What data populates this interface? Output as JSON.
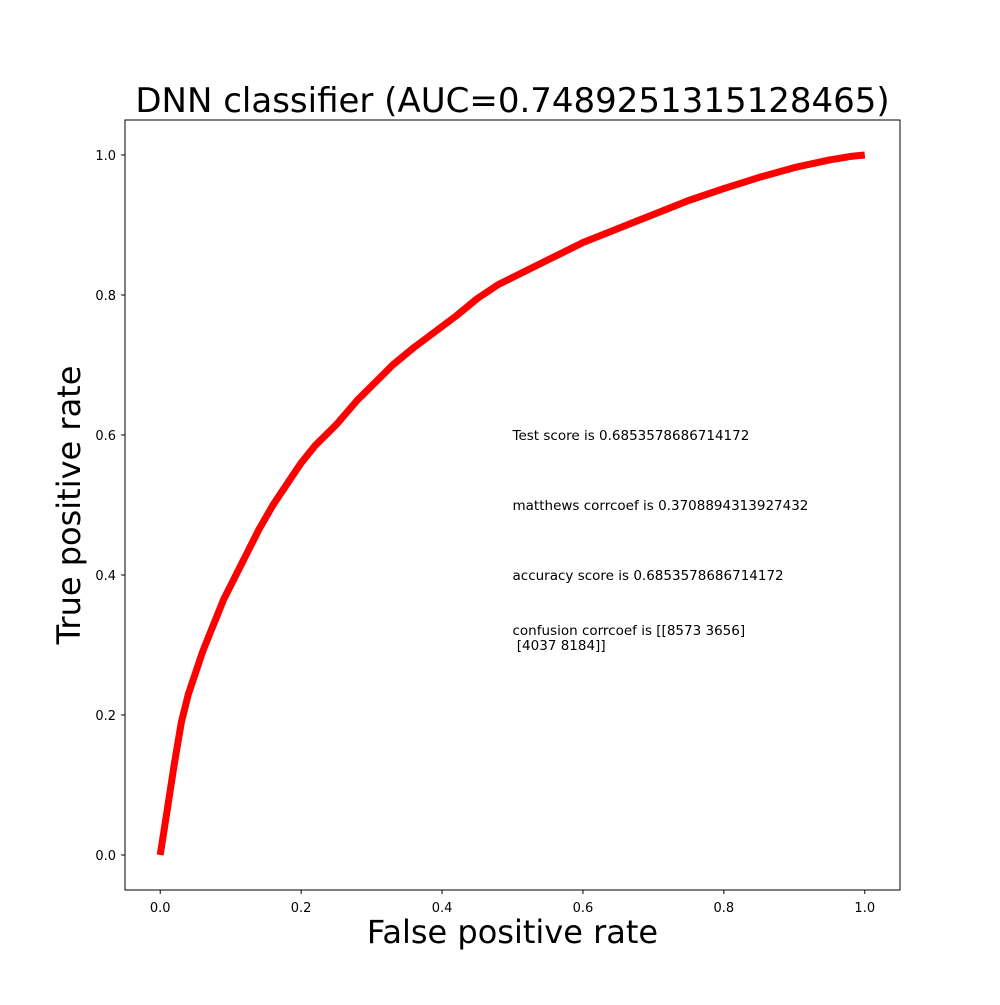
{
  "chart_data": {
    "type": "line",
    "title": "DNN classifier (AUC=0.7489251315128465)",
    "xlabel": "False positive rate",
    "ylabel": "True positive rate",
    "xlim": [
      -0.05,
      1.05
    ],
    "ylim": [
      -0.05,
      1.05
    ],
    "xticks": [
      "0.0",
      "0.2",
      "0.4",
      "0.6",
      "0.8",
      "1.0"
    ],
    "yticks": [
      "0.0",
      "0.2",
      "0.4",
      "0.6",
      "0.8",
      "1.0"
    ],
    "grid": false,
    "series": [
      {
        "color": "#ff0000",
        "x": [
          0.0,
          0.01,
          0.02,
          0.03,
          0.04,
          0.05,
          0.06,
          0.07,
          0.08,
          0.09,
          0.1,
          0.12,
          0.14,
          0.16,
          0.18,
          0.2,
          0.22,
          0.25,
          0.28,
          0.3,
          0.33,
          0.36,
          0.38,
          0.4,
          0.42,
          0.45,
          0.48,
          0.5,
          0.55,
          0.6,
          0.65,
          0.7,
          0.75,
          0.8,
          0.85,
          0.9,
          0.95,
          0.98,
          1.0
        ],
        "y": [
          0.0,
          0.065,
          0.13,
          0.19,
          0.23,
          0.26,
          0.29,
          0.315,
          0.34,
          0.365,
          0.385,
          0.425,
          0.465,
          0.5,
          0.53,
          0.56,
          0.585,
          0.615,
          0.65,
          0.67,
          0.7,
          0.725,
          0.74,
          0.755,
          0.77,
          0.795,
          0.815,
          0.825,
          0.85,
          0.875,
          0.895,
          0.915,
          0.935,
          0.952,
          0.968,
          0.982,
          0.993,
          0.998,
          1.0
        ]
      }
    ],
    "annotations": [
      {
        "x": 0.5,
        "y": 0.6,
        "lines": [
          "Test score is 0.6853578686714172"
        ]
      },
      {
        "x": 0.5,
        "y": 0.5,
        "lines": [
          "matthews corrcoef is 0.3708894313927432"
        ]
      },
      {
        "x": 0.5,
        "y": 0.4,
        "lines": [
          "accuracy score is 0.6853578686714172"
        ]
      },
      {
        "x": 0.5,
        "y": 0.3,
        "lines": [
          "confusion corrcoef is [[8573 3656]",
          " [4037 8184]]"
        ]
      }
    ]
  }
}
